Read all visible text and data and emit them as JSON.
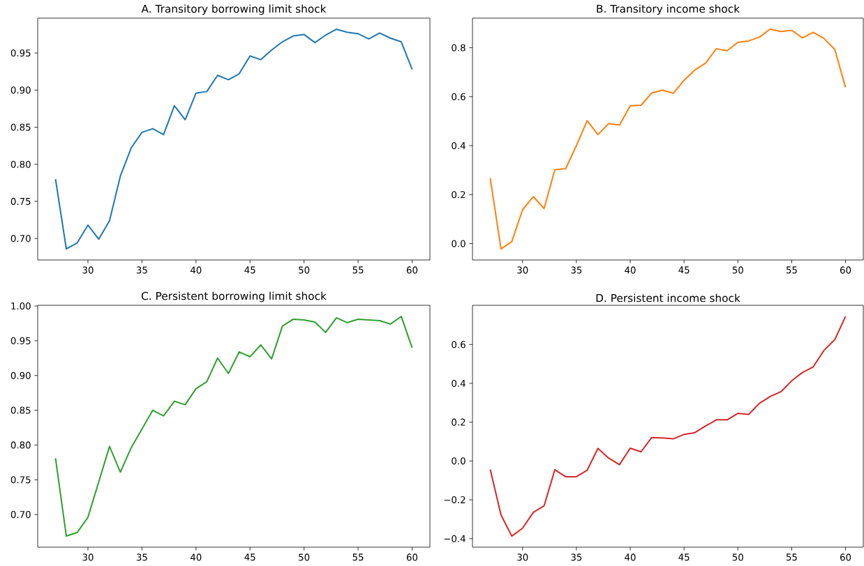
{
  "chart_data": [
    {
      "type": "line",
      "title": "A. Transitory borrowing limit shock",
      "x": [
        27,
        28,
        29,
        30,
        31,
        32,
        33,
        34,
        35,
        36,
        37,
        38,
        39,
        40,
        41,
        42,
        43,
        44,
        45,
        46,
        47,
        48,
        49,
        50,
        51,
        52,
        53,
        54,
        55,
        56,
        57,
        58,
        59,
        60
      ],
      "series": [
        {
          "color": "#1f77b4",
          "values": [
            0.78,
            0.686,
            0.694,
            0.718,
            0.699,
            0.724,
            0.784,
            0.822,
            0.843,
            0.848,
            0.84,
            0.879,
            0.86,
            0.896,
            0.898,
            0.92,
            0.914,
            0.922,
            0.946,
            0.941,
            0.954,
            0.965,
            0.973,
            0.975,
            0.964,
            0.974,
            0.982,
            0.978,
            0.976,
            0.969,
            0.977,
            0.97,
            0.965,
            0.928
          ]
        }
      ],
      "xlim": [
        25.35,
        61.65
      ],
      "ylim": [
        0.671,
        0.997
      ],
      "xticks": [
        30,
        35,
        40,
        45,
        50,
        55,
        60
      ],
      "yticks": [
        {
          "value": 0.7,
          "label": "0.70"
        },
        {
          "value": 0.75,
          "label": "0.75"
        },
        {
          "value": 0.8,
          "label": "0.80"
        },
        {
          "value": 0.85,
          "label": "0.85"
        },
        {
          "value": 0.9,
          "label": "0.90"
        },
        {
          "value": 0.95,
          "label": "0.95"
        }
      ]
    },
    {
      "type": "line",
      "title": "B. Transitory income shock",
      "x": [
        27,
        28,
        29,
        30,
        31,
        32,
        33,
        34,
        35,
        36,
        37,
        38,
        39,
        40,
        41,
        42,
        43,
        44,
        45,
        46,
        47,
        48,
        49,
        50,
        51,
        52,
        53,
        54,
        55,
        56,
        57,
        58,
        59,
        60
      ],
      "series": [
        {
          "color": "#ff7f0e",
          "values": [
            0.267,
            -0.022,
            0.008,
            0.138,
            0.192,
            0.143,
            0.302,
            0.306,
            0.4,
            0.502,
            0.445,
            0.49,
            0.484,
            0.563,
            0.565,
            0.615,
            0.627,
            0.614,
            0.667,
            0.709,
            0.737,
            0.796,
            0.788,
            0.822,
            0.828,
            0.843,
            0.876,
            0.866,
            0.871,
            0.84,
            0.863,
            0.838,
            0.793,
            0.638
          ]
        }
      ],
      "xlim": [
        25.35,
        61.65
      ],
      "ylim": [
        -0.067,
        0.921
      ],
      "xticks": [
        30,
        35,
        40,
        45,
        50,
        55,
        60
      ],
      "yticks": [
        {
          "value": 0,
          "label": "0.0"
        },
        {
          "value": 0.2,
          "label": "0.2"
        },
        {
          "value": 0.4,
          "label": "0.4"
        },
        {
          "value": 0.6,
          "label": "0.6"
        },
        {
          "value": 0.8,
          "label": "0.8"
        }
      ]
    },
    {
      "type": "line",
      "title": "C. Persistent borrowing limit shock",
      "x": [
        27,
        28,
        29,
        30,
        31,
        32,
        33,
        34,
        35,
        36,
        37,
        38,
        39,
        40,
        41,
        42,
        43,
        44,
        45,
        46,
        47,
        48,
        49,
        50,
        51,
        52,
        53,
        54,
        55,
        56,
        57,
        58,
        59,
        60
      ],
      "series": [
        {
          "color": "#2ca02c",
          "values": [
            0.781,
            0.669,
            0.674,
            0.696,
            0.747,
            0.798,
            0.761,
            0.796,
            0.823,
            0.85,
            0.842,
            0.863,
            0.858,
            0.881,
            0.891,
            0.925,
            0.903,
            0.934,
            0.927,
            0.944,
            0.924,
            0.971,
            0.981,
            0.98,
            0.977,
            0.962,
            0.983,
            0.976,
            0.981,
            0.98,
            0.979,
            0.974,
            0.985,
            0.94
          ]
        }
      ],
      "xlim": [
        25.35,
        61.65
      ],
      "ylim": [
        0.653,
        1.001
      ],
      "xticks": [
        30,
        35,
        40,
        45,
        50,
        55,
        60
      ],
      "yticks": [
        {
          "value": 0.7,
          "label": "0.70"
        },
        {
          "value": 0.75,
          "label": "0.75"
        },
        {
          "value": 0.8,
          "label": "0.80"
        },
        {
          "value": 0.85,
          "label": "0.85"
        },
        {
          "value": 0.9,
          "label": "0.90"
        },
        {
          "value": 0.95,
          "label": "0.95"
        },
        {
          "value": 1.0,
          "label": "1.00"
        }
      ]
    },
    {
      "type": "line",
      "title": "D. Persistent income shock",
      "x": [
        27,
        28,
        29,
        30,
        31,
        32,
        33,
        34,
        35,
        36,
        37,
        38,
        39,
        40,
        41,
        42,
        43,
        44,
        45,
        46,
        47,
        48,
        49,
        50,
        51,
        52,
        53,
        54,
        55,
        56,
        57,
        58,
        59,
        60
      ],
      "series": [
        {
          "color": "#d62728",
          "values": [
            -0.044,
            -0.278,
            -0.387,
            -0.346,
            -0.265,
            -0.231,
            -0.045,
            -0.081,
            -0.081,
            -0.048,
            0.065,
            0.015,
            -0.019,
            0.066,
            0.047,
            0.121,
            0.119,
            0.114,
            0.137,
            0.146,
            0.18,
            0.212,
            0.212,
            0.245,
            0.24,
            0.297,
            0.332,
            0.357,
            0.413,
            0.456,
            0.485,
            0.57,
            0.625,
            0.745
          ]
        }
      ],
      "xlim": [
        25.35,
        61.65
      ],
      "ylim": [
        -0.444,
        0.802
      ],
      "xticks": [
        30,
        35,
        40,
        45,
        50,
        55,
        60
      ],
      "yticks": [
        {
          "value": -0.4,
          "label": "−0.4"
        },
        {
          "value": -0.2,
          "label": "−0.2"
        },
        {
          "value": 0,
          "label": "0.0"
        },
        {
          "value": 0.2,
          "label": "0.2"
        },
        {
          "value": 0.4,
          "label": "0.4"
        },
        {
          "value": 0.6,
          "label": "0.6"
        }
      ]
    }
  ]
}
